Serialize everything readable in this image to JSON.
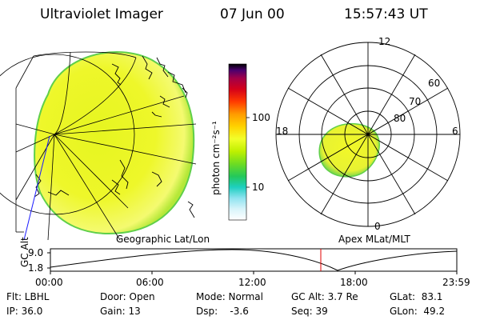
{
  "header": {
    "instrument": "Ultraviolet Imager",
    "date": "07 Jun 00",
    "time": "15:57:43 UT"
  },
  "colorbar": {
    "unit_label": "photon cm⁻²s⁻¹",
    "ticks": [
      "100",
      "10"
    ],
    "colors": [
      "#000000",
      "#4b006e",
      "#a0004a",
      "#d4001a",
      "#ff3a00",
      "#ff9a00",
      "#ffd200",
      "#f2ff2a",
      "#bff000",
      "#6edc22",
      "#24c85a",
      "#1ecfc0",
      "#8fe3f0",
      "#d8f4fa",
      "#ffffff"
    ]
  },
  "panels": {
    "left_label": "Geographic Lat/Lon",
    "right_label": "Apex MLat/MLT",
    "polar": {
      "mlt_labels": [
        "12",
        "18",
        "6",
        "0"
      ],
      "lat_labels": [
        "60",
        "70",
        "80"
      ]
    }
  },
  "timeline": {
    "axis_title": "GC Alt",
    "y_ticks": [
      "9.0",
      "1.8"
    ],
    "x_ticks": [
      "00:00",
      "06:00",
      "12:00",
      "18:00",
      "23:59"
    ]
  },
  "status": {
    "row1": {
      "filter": "Flt: LBHL",
      "door": "Door: Open",
      "mode": "Mode: Normal",
      "gc_alt": "GC Alt: 3.7 Re",
      "glat": "GLat:  83.1"
    },
    "row2": {
      "ip": "IP: 36.0",
      "gain": "Gain: 13",
      "dsp": "Dsp:    -3.6",
      "seq": "Seq: 39",
      "glon": "GLon:  49.2"
    }
  }
}
